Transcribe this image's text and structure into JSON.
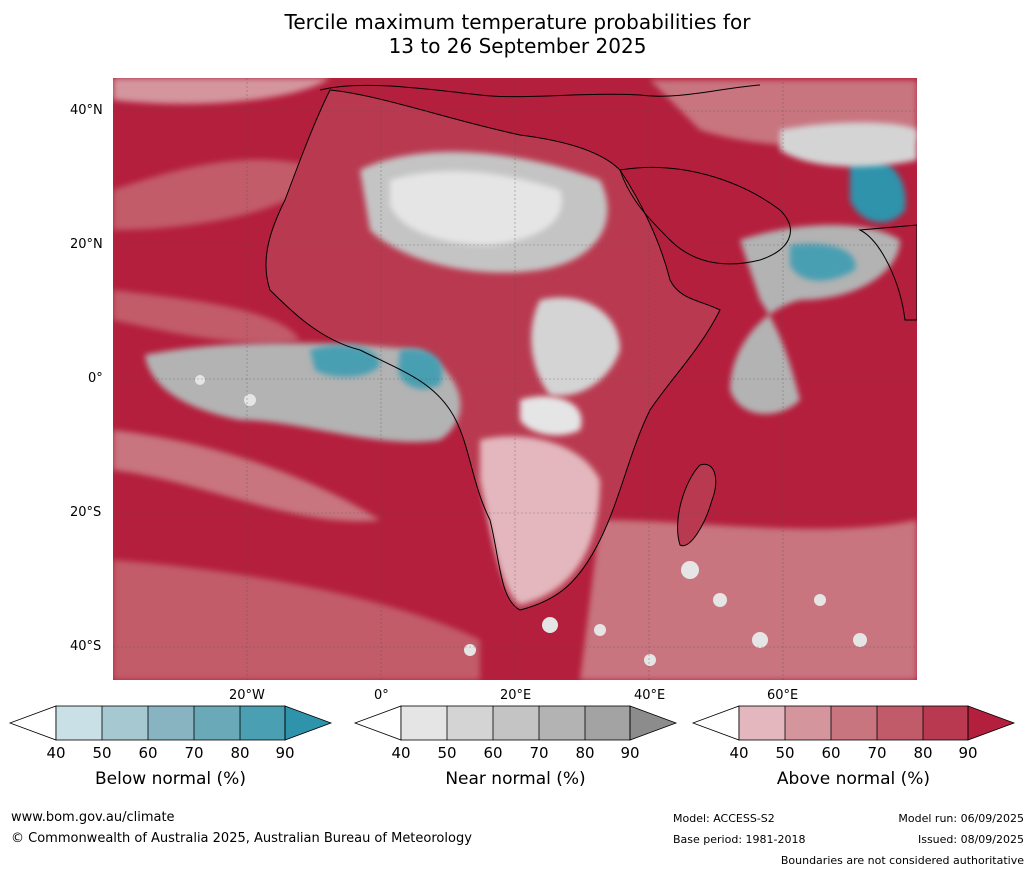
{
  "title": {
    "line1": "Tercile maximum temperature probabilities for",
    "line2": "13 to 26 September 2025"
  },
  "axes": {
    "lat_labels": [
      "40°N",
      "20°N",
      "0°",
      "20°S",
      "40°S"
    ],
    "lon_labels": [
      "20°W",
      "0°",
      "20°E",
      "40°E",
      "60°E"
    ]
  },
  "colorbars": [
    {
      "label": "Below normal (%)",
      "ticks": [
        "40",
        "50",
        "60",
        "70",
        "80",
        "90"
      ],
      "colors": [
        "#ffffff",
        "#c9e0e6",
        "#a6c9d1",
        "#87b4c0",
        "#6aa9b8",
        "#4a9fb2",
        "#2f93ab"
      ]
    },
    {
      "label": "Near normal (%)",
      "ticks": [
        "40",
        "50",
        "60",
        "70",
        "80",
        "90"
      ],
      "colors": [
        "#ffffff",
        "#e5e5e5",
        "#d4d4d4",
        "#c4c4c4",
        "#b3b3b3",
        "#a3a3a3",
        "#8c8c8c"
      ]
    },
    {
      "label": "Above normal (%)",
      "ticks": [
        "40",
        "50",
        "60",
        "70",
        "80",
        "90"
      ],
      "colors": [
        "#ffffff",
        "#e3b7bd",
        "#d4959d",
        "#c8757f",
        "#c25b69",
        "#b93a50",
        "#b41f3d"
      ]
    }
  ],
  "footer": {
    "website": "www.bom.gov.au/climate",
    "copyright": "© Commonwealth of Australia 2025, Australian Bureau of Meteorology",
    "model": "Model: ACCESS-S2",
    "base_period": "Base period: 1981-2018",
    "model_run": "Model run: 06/09/2025",
    "issued": "Issued: 08/09/2025",
    "disclaimer": "Boundaries are not considered authoritative"
  }
}
